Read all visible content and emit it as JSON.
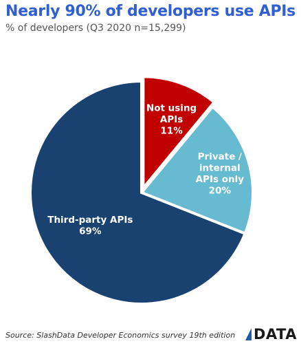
{
  "header": {
    "title": "Nearly 90% of developers use APIs",
    "subtitle": "% of developers (Q3 2020 n=15,299)"
  },
  "chart_data": {
    "type": "pie",
    "slices": [
      {
        "label_lines": [
          "Not using",
          "APIs"
        ],
        "pct_label": "11%",
        "value": 11,
        "color": "#c00000"
      },
      {
        "label_lines": [
          "Private /",
          "internal",
          "APIs only"
        ],
        "pct_label": "20%",
        "value": 20,
        "color": "#66bbd1"
      },
      {
        "label_lines": [
          "Third-party APIs"
        ],
        "pct_label": "69%",
        "value": 69,
        "color": "#1a4270"
      }
    ]
  },
  "footer": {
    "source": "Source: SlashData Developer Economics survey 19th edition",
    "logo": "DATA"
  }
}
